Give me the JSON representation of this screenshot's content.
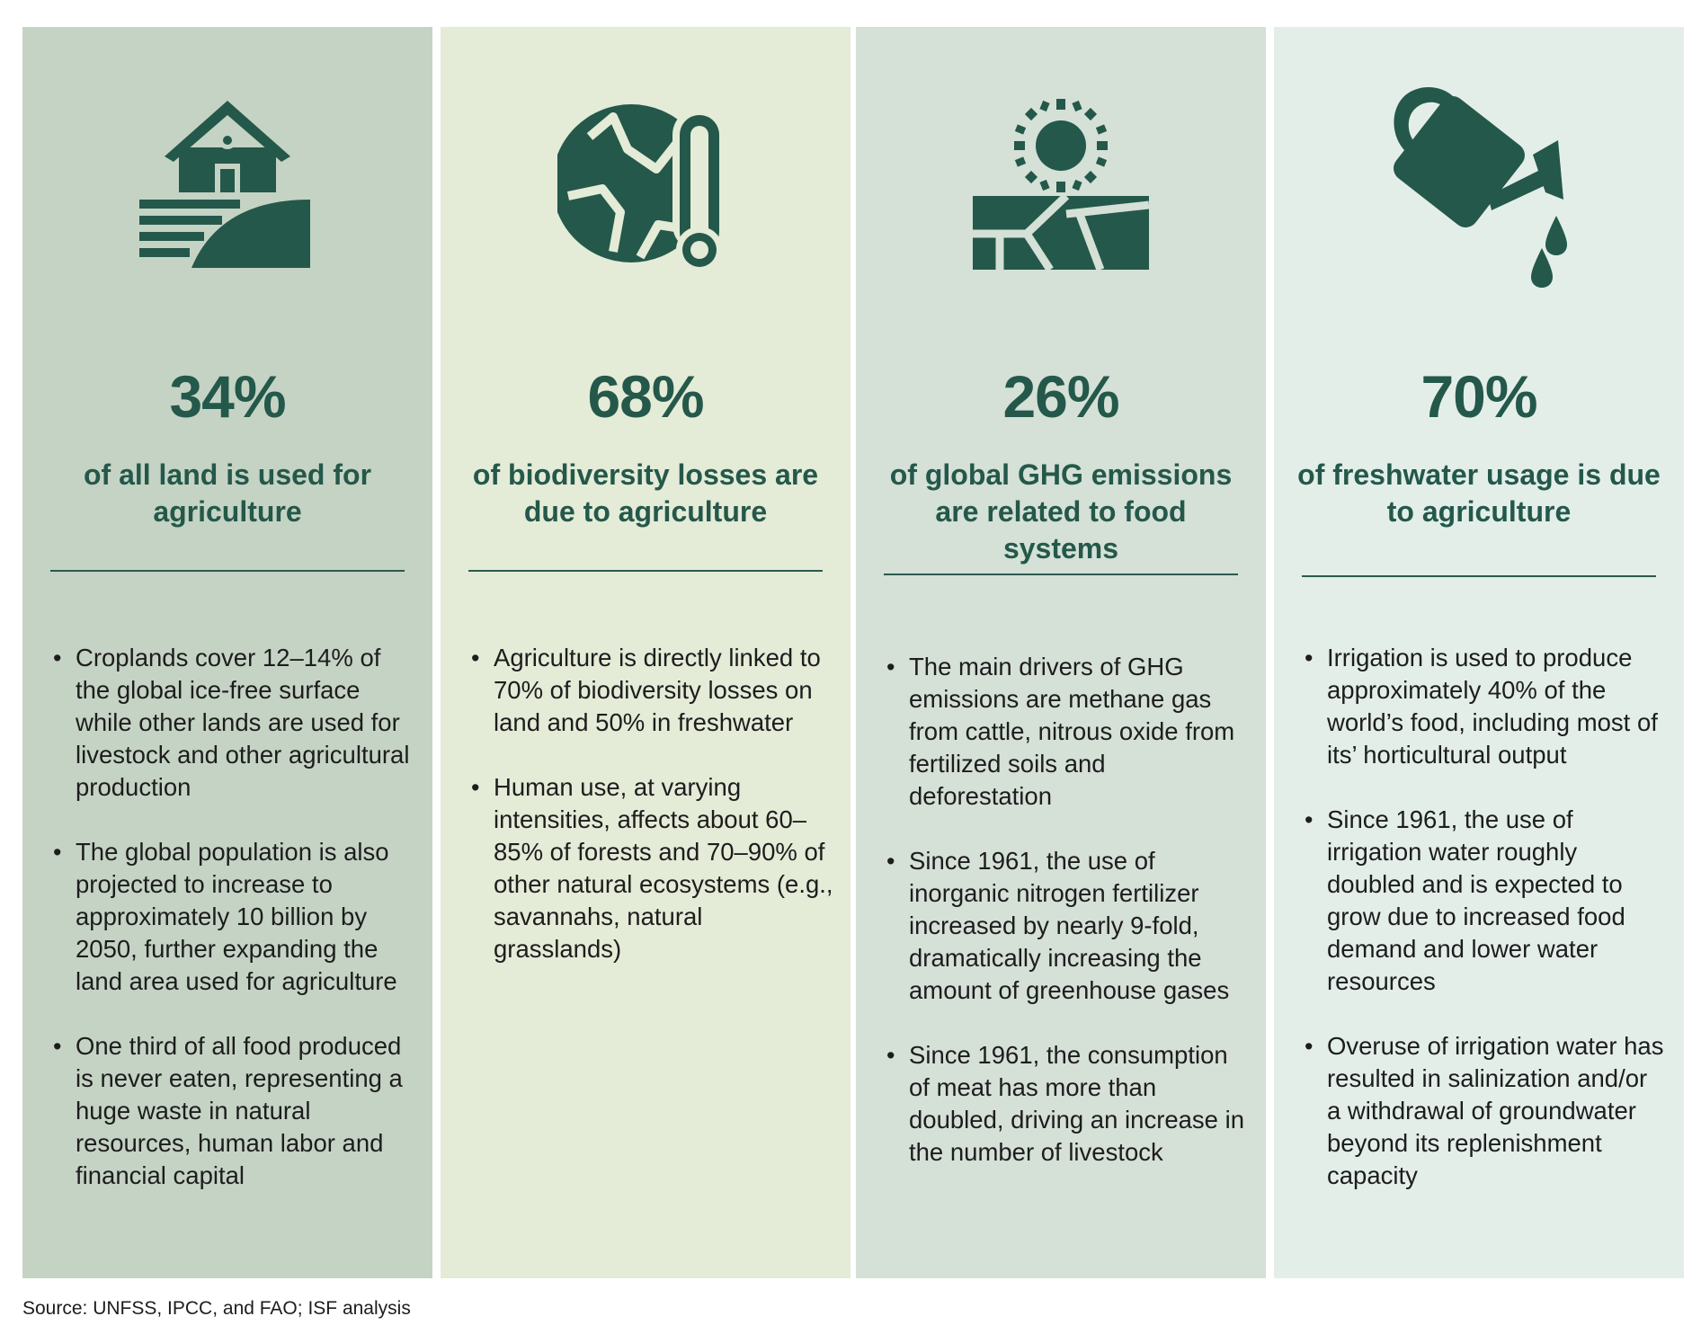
{
  "colors": {
    "accent": "#24584a",
    "panel_1_bg": "#c5d3c4",
    "panel_2_bg": "#e4ebd7",
    "panel_3_bg": "#d5e0d7",
    "panel_4_bg": "#e3eee9"
  },
  "panels": [
    {
      "icon": "farm-barn-icon",
      "stat": "34%",
      "caption": "of all land is used for agriculture",
      "bullets": [
        "Croplands cover 12–14% of the global ice-free surface while other lands are used for livestock and other agricultural production",
        "The global population is also projected to increase to approximately 10 billion by 2050, further expanding the land area used for agriculture",
        "One third of all food produced is never eaten, representing a huge waste in natural resources, human labor and financial capital"
      ]
    },
    {
      "icon": "globe-thermometer-icon",
      "stat": "68%",
      "caption": "of biodiversity losses are due to agriculture",
      "bullets": [
        "Agriculture is directly linked to 70% of biodiversity losses on land and 50% in freshwater",
        "Human use, at varying intensities, affects about 60–85% of forests and 70–90% of other natural ecosystems (e.g., savannahs, natural grasslands)"
      ]
    },
    {
      "icon": "sun-cracked-earth-icon",
      "stat": "26%",
      "caption": "of global GHG emissions are related to food systems",
      "bullets": [
        "The main drivers of GHG emissions are methane gas from cattle, nitrous oxide from fertilized soils and deforestation",
        "Since 1961, the use of inorganic nitrogen fertilizer increased by nearly 9-fold, dramatically increasing the amount of greenhouse gases",
        "Since 1961, the consumption of meat has more than doubled, driving an increase in the number of livestock"
      ]
    },
    {
      "icon": "watering-can-icon",
      "stat": "70%",
      "caption": "of freshwater usage is due to agriculture",
      "bullets": [
        "Irrigation is used to produce approximately 40% of the world’s food, including most of its’ horticultural output",
        "Since 1961, the use of irrigation water roughly doubled and is expected to grow due to increased food demand and lower water resources",
        "Overuse of irrigation water has resulted in salinization and/or a withdrawal of groundwater beyond its replenishment capacity"
      ]
    }
  ],
  "source": "Source: UNFSS, IPCC, and FAO; ISF analysis"
}
